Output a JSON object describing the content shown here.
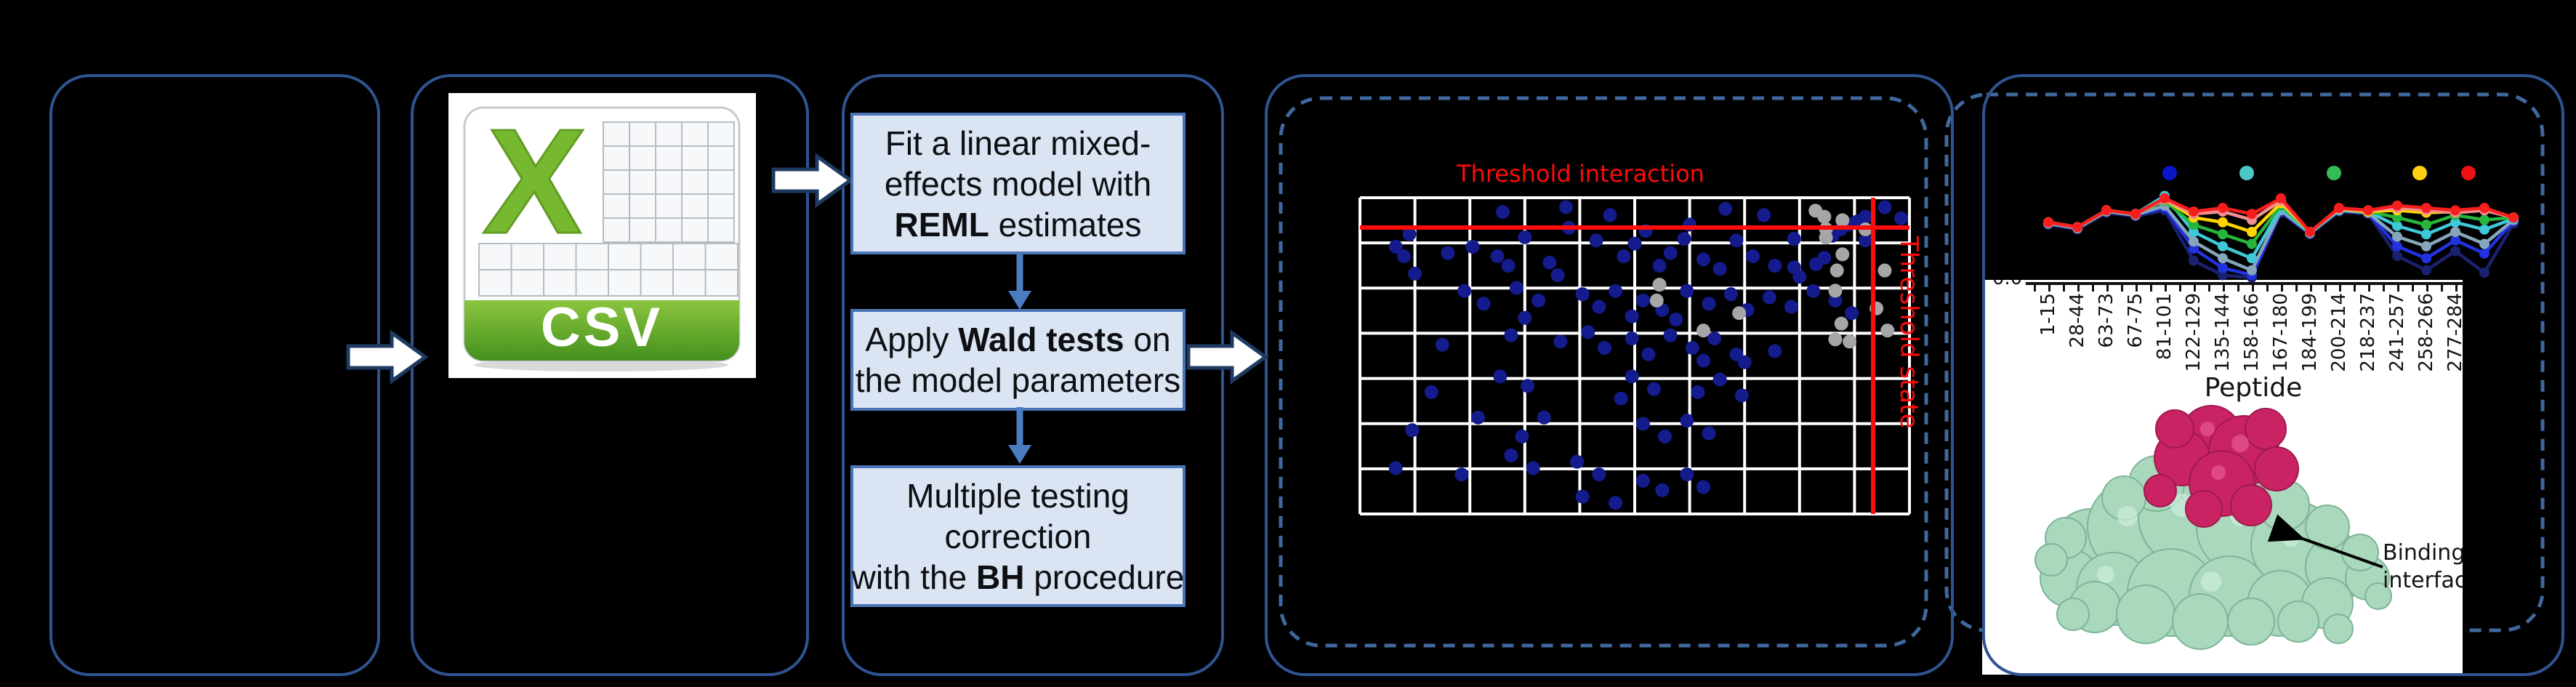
{
  "colors": {
    "background": "#000000",
    "panel_border": "#2f5490",
    "dashed_border": "#3f699e",
    "step_fill": "#dbe4f2",
    "step_border": "#4a74b8",
    "block_arrow_fill": "#ffffff",
    "block_arrow_stroke": "#1f3a60",
    "down_arrow": "#4a7cc0",
    "threshold_red": "#ff0b0b",
    "scatter_point": "#141b8d",
    "scatter_excluded": "#a6a6a6",
    "grid_line": "#ffffff",
    "csv_green": "#76b82f",
    "csv_banner_top": "#8bc53f",
    "csv_banner_bottom": "#44911d",
    "protein_surface": "#a9d8bd",
    "protein_interface": "#c92364"
  },
  "panels": {
    "csv_box": {
      "csv_label": "CSV"
    },
    "stats_box": {
      "step1": {
        "line1": "Fit a linear mixed-",
        "line2": "effects model with",
        "line3_bold": "REML",
        "line3_rest": " estimates"
      },
      "step2": {
        "line1_pre": "Apply ",
        "line1_bold": "Wald tests",
        "line1_post": " on",
        "line2": "the model parameters"
      },
      "step3": {
        "line1": "Multiple testing",
        "line2": "correction",
        "line3_pre": "with the ",
        "line3_bold": "BH",
        "line3_post": " procedure"
      }
    },
    "interaction_panel": {
      "title": "Threshold interaction",
      "vline_label": "Threshold state"
    },
    "state_panel": {
      "xlabel": "Peptide",
      "y_first_tick": "0.0",
      "annotation_line1": "Binding",
      "annotation_line2": "interface"
    }
  },
  "chart_data": [
    {
      "type": "scatter",
      "title": "Threshold interaction",
      "threshold_lines": {
        "horizontal_label": "Threshold interaction",
        "vertical_label": "Threshold state"
      },
      "axis_note": "axes unlabeled in image; points given as fractions of plot area from top-left",
      "x_range": [
        0,
        1
      ],
      "y_range": [
        0,
        1
      ],
      "grid": true,
      "series": [
        {
          "name": "peptide-points",
          "color": "#141b8d",
          "points": [
            [
              0.26,
              0.045
            ],
            [
              0.375,
              0.03
            ],
            [
              0.455,
              0.055
            ],
            [
              0.665,
              0.035
            ],
            [
              0.735,
              0.055
            ],
            [
              0.955,
              0.03
            ],
            [
              0.985,
              0.065
            ],
            [
              0.6,
              0.085
            ],
            [
              0.88,
              0.09
            ],
            [
              0.92,
              0.06
            ],
            [
              0.09,
              0.115
            ],
            [
              0.3,
              0.125
            ],
            [
              0.52,
              0.105
            ],
            [
              0.38,
              0.095
            ],
            [
              0.86,
              0.12
            ],
            [
              0.875,
              0.1
            ],
            [
              0.89,
              0.085
            ],
            [
              0.905,
              0.075
            ],
            [
              0.5,
              0.145
            ],
            [
              0.59,
              0.13
            ],
            [
              0.685,
              0.135
            ],
            [
              0.79,
              0.13
            ],
            [
              0.065,
              0.155
            ],
            [
              0.08,
              0.185
            ],
            [
              0.16,
              0.175
            ],
            [
              0.205,
              0.155
            ],
            [
              0.25,
              0.185
            ],
            [
              0.27,
              0.215
            ],
            [
              0.345,
              0.205
            ],
            [
              0.36,
              0.245
            ],
            [
              0.43,
              0.135
            ],
            [
              0.48,
              0.185
            ],
            [
              0.545,
              0.215
            ],
            [
              0.565,
              0.175
            ],
            [
              0.625,
              0.195
            ],
            [
              0.655,
              0.225
            ],
            [
              0.715,
              0.185
            ],
            [
              0.755,
              0.215
            ],
            [
              0.83,
              0.21
            ],
            [
              0.845,
              0.19
            ],
            [
              0.8,
              0.25
            ],
            [
              0.79,
              0.22
            ],
            [
              0.92,
              0.135
            ],
            [
              0.1,
              0.24
            ],
            [
              0.19,
              0.295
            ],
            [
              0.225,
              0.335
            ],
            [
              0.285,
              0.285
            ],
            [
              0.325,
              0.325
            ],
            [
              0.405,
              0.305
            ],
            [
              0.435,
              0.345
            ],
            [
              0.465,
              0.295
            ],
            [
              0.515,
              0.325
            ],
            [
              0.55,
              0.355
            ],
            [
              0.595,
              0.295
            ],
            [
              0.635,
              0.335
            ],
            [
              0.675,
              0.305
            ],
            [
              0.705,
              0.355
            ],
            [
              0.745,
              0.315
            ],
            [
              0.785,
              0.345
            ],
            [
              0.825,
              0.295
            ],
            [
              0.865,
              0.325
            ],
            [
              0.895,
              0.365
            ],
            [
              0.495,
              0.375
            ],
            [
              0.575,
              0.385
            ],
            [
              0.3,
              0.38
            ],
            [
              0.15,
              0.465
            ],
            [
              0.275,
              0.435
            ],
            [
              0.365,
              0.455
            ],
            [
              0.415,
              0.425
            ],
            [
              0.445,
              0.475
            ],
            [
              0.495,
              0.445
            ],
            [
              0.525,
              0.495
            ],
            [
              0.565,
              0.435
            ],
            [
              0.605,
              0.475
            ],
            [
              0.645,
              0.445
            ],
            [
              0.685,
              0.495
            ],
            [
              0.755,
              0.485
            ],
            [
              0.625,
              0.515
            ],
            [
              0.7,
              0.52
            ],
            [
              0.13,
              0.615
            ],
            [
              0.255,
              0.565
            ],
            [
              0.305,
              0.595
            ],
            [
              0.495,
              0.565
            ],
            [
              0.535,
              0.605
            ],
            [
              0.615,
              0.615
            ],
            [
              0.655,
              0.575
            ],
            [
              0.695,
              0.625
            ],
            [
              0.475,
              0.635
            ],
            [
              0.095,
              0.735
            ],
            [
              0.215,
              0.695
            ],
            [
              0.295,
              0.755
            ],
            [
              0.335,
              0.695
            ],
            [
              0.515,
              0.715
            ],
            [
              0.555,
              0.755
            ],
            [
              0.595,
              0.705
            ],
            [
              0.635,
              0.745
            ],
            [
              0.065,
              0.855
            ],
            [
              0.185,
              0.875
            ],
            [
              0.275,
              0.815
            ],
            [
              0.315,
              0.855
            ],
            [
              0.395,
              0.835
            ],
            [
              0.435,
              0.875
            ],
            [
              0.515,
              0.895
            ],
            [
              0.55,
              0.925
            ],
            [
              0.595,
              0.875
            ],
            [
              0.625,
              0.915
            ],
            [
              0.405,
              0.945
            ],
            [
              0.465,
              0.965
            ]
          ]
        },
        {
          "name": "excluded-points",
          "color": "#a6a6a6",
          "points": [
            [
              0.829,
              0.041
            ],
            [
              0.845,
              0.06
            ],
            [
              0.848,
              0.099
            ],
            [
              0.848,
              0.126
            ],
            [
              0.878,
              0.071
            ],
            [
              0.878,
              0.179
            ],
            [
              0.868,
              0.23
            ],
            [
              0.865,
              0.294
            ],
            [
              0.876,
              0.398
            ],
            [
              0.865,
              0.448
            ],
            [
              0.891,
              0.455
            ],
            [
              0.92,
              0.1
            ],
            [
              0.955,
              0.23
            ],
            [
              0.94,
              0.35
            ],
            [
              0.96,
              0.42
            ],
            [
              0.545,
              0.275
            ],
            [
              0.54,
              0.325
            ],
            [
              0.625,
              0.42
            ],
            [
              0.69,
              0.365
            ]
          ]
        }
      ]
    },
    {
      "type": "line",
      "xlabel": "Peptide",
      "y_first_tick_label": "0.0",
      "categories": [
        "1-15",
        "28-44",
        "63-73",
        "67-75",
        "81-101",
        "122-129",
        "135-144",
        "158-166",
        "167-180",
        "184-199",
        "200-214",
        "218-237",
        "241-257",
        "258-266",
        "277-284"
      ],
      "legend_dot_colors": [
        "#0b16c9",
        "#4cc8c8",
        "#33bb55",
        "#ffd012",
        "#ee1111"
      ],
      "value_note": "values are normalized uptake (0-1) estimated from pixel heights; 17 plotted points, first 15 labeled",
      "series": [
        {
          "name": "series-navy",
          "color": "#1b2070",
          "values": [
            0.46,
            0.42,
            0.56,
            0.53,
            0.58,
            0.16,
            0.04,
            0.02,
            0.56,
            0.38,
            0.57,
            0.55,
            0.2,
            0.08,
            0.24,
            0.06,
            0.47
          ]
        },
        {
          "name": "series-blue",
          "color": "#2133e0",
          "values": [
            0.47,
            0.43,
            0.57,
            0.54,
            0.6,
            0.26,
            0.1,
            0.04,
            0.57,
            0.39,
            0.58,
            0.56,
            0.28,
            0.18,
            0.33,
            0.22,
            0.49
          ]
        },
        {
          "name": "series-steel",
          "color": "#85a6bb",
          "values": [
            0.47,
            0.43,
            0.57,
            0.54,
            0.62,
            0.32,
            0.18,
            0.08,
            0.58,
            0.39,
            0.58,
            0.56,
            0.36,
            0.28,
            0.4,
            0.3,
            0.5
          ]
        },
        {
          "name": "series-cyan",
          "color": "#3fc8d8",
          "values": [
            0.48,
            0.44,
            0.58,
            0.55,
            0.7,
            0.4,
            0.28,
            0.18,
            0.6,
            0.39,
            0.58,
            0.57,
            0.45,
            0.38,
            0.48,
            0.42,
            0.51
          ]
        },
        {
          "name": "series-green",
          "color": "#27b53c",
          "values": [
            0.48,
            0.44,
            0.58,
            0.55,
            0.66,
            0.46,
            0.38,
            0.3,
            0.62,
            0.4,
            0.59,
            0.57,
            0.52,
            0.46,
            0.54,
            0.5,
            0.52
          ]
        },
        {
          "name": "series-yellow",
          "color": "#ffd400",
          "values": [
            0.48,
            0.44,
            0.58,
            0.55,
            0.67,
            0.52,
            0.48,
            0.4,
            0.64,
            0.4,
            0.59,
            0.57,
            0.58,
            0.56,
            0.57,
            0.59,
            0.52
          ]
        },
        {
          "name": "series-salmon",
          "color": "#f48f8f",
          "values": [
            0.48,
            0.44,
            0.58,
            0.55,
            0.67,
            0.55,
            0.57,
            0.5,
            0.66,
            0.4,
            0.59,
            0.58,
            0.6,
            0.58,
            0.56,
            0.58,
            0.52
          ]
        },
        {
          "name": "series-red",
          "color": "#f81e1e",
          "values": [
            0.48,
            0.44,
            0.58,
            0.55,
            0.68,
            0.57,
            0.6,
            0.55,
            0.68,
            0.4,
            0.6,
            0.58,
            0.62,
            0.6,
            0.58,
            0.6,
            0.52
          ]
        }
      ]
    }
  ]
}
